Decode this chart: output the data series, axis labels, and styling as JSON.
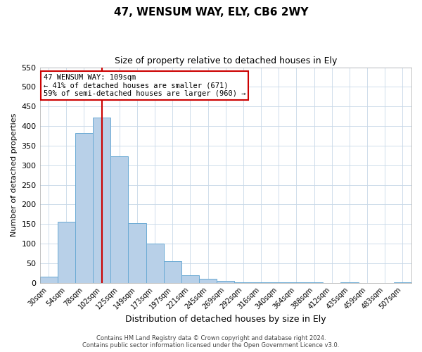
{
  "title": "47, WENSUM WAY, ELY, CB6 2WY",
  "subtitle": "Size of property relative to detached houses in Ely",
  "xlabel": "Distribution of detached houses by size in Ely",
  "ylabel": "Number of detached properties",
  "bin_labels": [
    "30sqm",
    "54sqm",
    "78sqm",
    "102sqm",
    "125sqm",
    "149sqm",
    "173sqm",
    "197sqm",
    "221sqm",
    "245sqm",
    "269sqm",
    "292sqm",
    "316sqm",
    "340sqm",
    "364sqm",
    "388sqm",
    "412sqm",
    "435sqm",
    "459sqm",
    "483sqm",
    "507sqm"
  ],
  "bar_heights": [
    15,
    155,
    383,
    421,
    323,
    153,
    100,
    55,
    20,
    10,
    5,
    2,
    2,
    1,
    1,
    1,
    0,
    1,
    0,
    0,
    1
  ],
  "bar_color": "#b8d0e8",
  "bar_edge_color": "#6aaad4",
  "vline_color": "#cc0000",
  "annotation_text": "47 WENSUM WAY: 109sqm\n← 41% of detached houses are smaller (671)\n59% of semi-detached houses are larger (960) →",
  "annotation_box_color": "#ffffff",
  "annotation_box_edge_color": "#cc0000",
  "ylim": [
    0,
    550
  ],
  "yticks": [
    0,
    50,
    100,
    150,
    200,
    250,
    300,
    350,
    400,
    450,
    500,
    550
  ],
  "footer_line1": "Contains HM Land Registry data © Crown copyright and database right 2024.",
  "footer_line2": "Contains public sector information licensed under the Open Government Licence v3.0.",
  "background_color": "#ffffff",
  "grid_color": "#c8d8e8"
}
